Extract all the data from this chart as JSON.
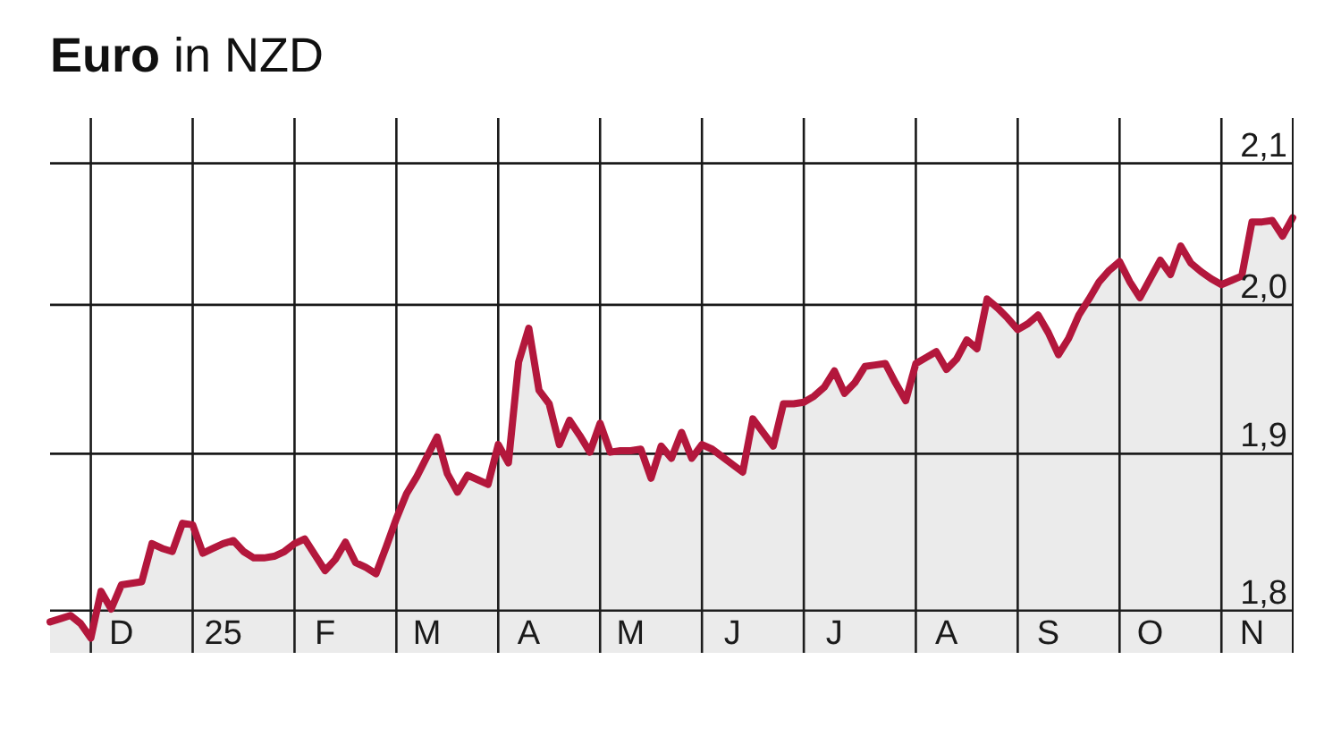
{
  "chart_data": {
    "type": "area",
    "title": "Euro in NZD",
    "categories": [
      null,
      null,
      null,
      null,
      null,
      null,
      null,
      "D",
      null,
      null,
      null,
      null,
      null,
      null,
      null,
      null,
      null,
      "25",
      null,
      null,
      null,
      null,
      null,
      null,
      null,
      null,
      null,
      "F",
      null,
      null,
      null,
      null,
      null,
      null,
      null,
      null,
      null,
      "M",
      null,
      null,
      null,
      null,
      null,
      null,
      null,
      null,
      null,
      "A",
      null,
      null,
      null,
      null,
      null,
      null,
      null,
      null,
      null,
      "M",
      null,
      null,
      null,
      null,
      null,
      null,
      null,
      null,
      null,
      "J",
      null,
      null,
      null,
      null,
      null,
      null,
      null,
      null,
      null,
      "J",
      null,
      null,
      null,
      null,
      null,
      null,
      null,
      null,
      null,
      null,
      "A",
      null,
      null,
      null,
      null,
      null,
      null,
      null,
      null,
      null,
      "S",
      null,
      null,
      null,
      null,
      null,
      null,
      null,
      null,
      null,
      "O",
      null,
      null,
      null,
      null,
      null,
      null,
      null,
      null,
      null,
      "N",
      null,
      null,
      null,
      null
    ],
    "values": [
      1.793,
      1.795,
      1.797,
      1.792,
      1.783,
      1.812,
      1.801,
      1.816,
      1.817,
      1.818,
      1.842,
      1.839,
      1.837,
      1.855,
      1.854,
      1.836,
      1.839,
      1.842,
      1.844,
      1.837,
      1.833,
      1.833,
      1.834,
      1.837,
      1.842,
      1.845,
      1.835,
      1.825,
      1.832,
      1.843,
      1.83,
      1.827,
      1.823,
      1.84,
      1.858,
      1.874,
      1.885,
      1.898,
      1.911,
      1.887,
      1.875,
      1.886,
      1.883,
      1.88,
      1.906,
      1.894,
      1.961,
      1.984,
      1.942,
      1.933,
      1.906,
      1.922,
      1.912,
      1.901,
      1.92,
      1.901,
      1.902,
      1.902,
      1.903,
      1.884,
      1.905,
      1.897,
      1.914,
      1.897,
      1.906,
      1.903,
      1.898,
      1.893,
      1.888,
      1.923,
      1.914,
      1.905,
      1.933,
      1.933,
      1.934,
      1.938,
      1.944,
      1.955,
      1.94,
      1.947,
      1.958,
      1.959,
      1.96,
      1.947,
      1.935,
      1.96,
      1.964,
      1.968,
      1.956,
      1.963,
      1.976,
      1.97,
      2.004,
      1.998,
      1.991,
      1.983,
      1.987,
      1.993,
      1.981,
      1.966,
      1.977,
      1.993,
      2.004,
      2.016,
      2.024,
      2.03,
      2.016,
      2.005,
      2.018,
      2.031,
      2.021,
      2.041,
      2.029,
      2.023,
      2.018,
      2.014,
      2.017,
      2.02,
      2.058,
      2.058,
      2.059,
      2.048,
      2.061
    ],
    "color": "#b3173c",
    "ylim": [
      1.774,
      2.133
    ],
    "yticks": [
      {
        "value": 1.8,
        "label": "1,8"
      },
      {
        "value": 1.9,
        "label": "1,9"
      },
      {
        "value": 2.0,
        "label": "2,0"
      },
      {
        "value": 2.1,
        "label": "2,1"
      }
    ],
    "log": true,
    "grid": true
  }
}
